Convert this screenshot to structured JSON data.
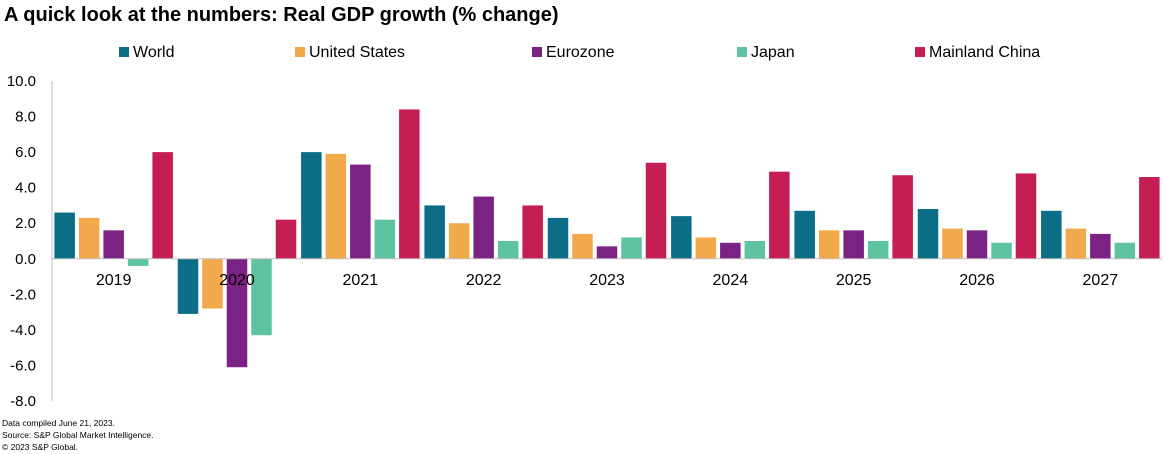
{
  "colors": {
    "World": "#0b6e86",
    "United States": "#f2a94b",
    "Eurozone": "#7a2384",
    "Japan": "#5ec3a3",
    "Mainland China": "#c41e52"
  },
  "chart_data": {
    "type": "bar",
    "title": "A quick look at the numbers: Real GDP growth (% change)",
    "xlabel": "",
    "ylabel": "",
    "ylim": [
      -8.0,
      10.0
    ],
    "yticks": [
      "10.0",
      "8.0",
      "6.0",
      "4.0",
      "2.0",
      "0.0",
      "-2.0",
      "-4.0",
      "-6.0",
      "-8.0"
    ],
    "legend_position": "top",
    "grid": false,
    "categories": [
      "2019",
      "2020",
      "2021",
      "2022",
      "2023",
      "2024",
      "2025",
      "2026",
      "2027"
    ],
    "series": [
      {
        "name": "World",
        "values": [
          2.6,
          -3.1,
          6.0,
          3.0,
          2.3,
          2.4,
          2.7,
          2.8,
          2.7
        ]
      },
      {
        "name": "United States",
        "values": [
          2.3,
          -2.8,
          5.9,
          2.0,
          1.4,
          1.2,
          1.6,
          1.7,
          1.7
        ]
      },
      {
        "name": "Eurozone",
        "values": [
          1.6,
          -6.1,
          5.3,
          3.5,
          0.7,
          0.9,
          1.6,
          1.6,
          1.4
        ]
      },
      {
        "name": "Japan",
        "values": [
          -0.4,
          -4.3,
          2.2,
          1.0,
          1.2,
          1.0,
          1.0,
          0.9,
          0.9
        ]
      },
      {
        "name": "Mainland China",
        "values": [
          6.0,
          2.2,
          8.4,
          3.0,
          5.4,
          4.9,
          4.7,
          4.8,
          4.6
        ]
      }
    ]
  },
  "footnotes": [
    "Data compiled June  21, 2023.",
    "Source: S&P Global Market Intelligence.",
    "© 2023 S&P Global."
  ]
}
